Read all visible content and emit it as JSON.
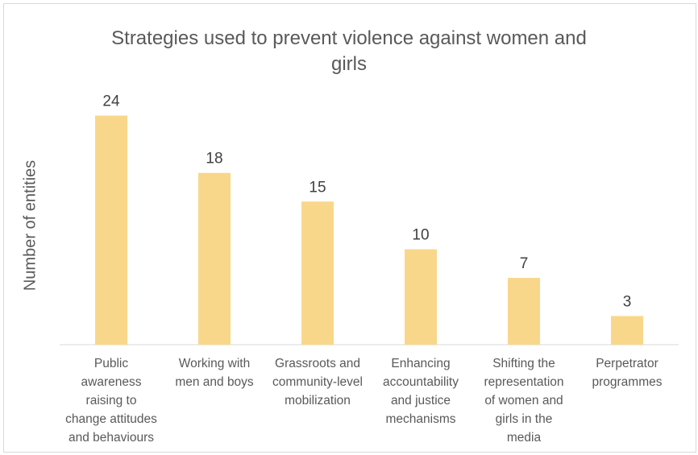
{
  "chart_data": {
    "type": "bar",
    "title_lines": [
      "Strategies used to prevent violence against women and",
      "girls"
    ],
    "ylabel": "Number of entities",
    "xlabel": "",
    "ylim": [
      0,
      26
    ],
    "grid": false,
    "legend": "none",
    "bar_color": "#f9d78a",
    "categories": [
      [
        "Public",
        "awareness",
        "raising to",
        "change attitudes",
        "and behaviours"
      ],
      [
        "Working with",
        "men and boys"
      ],
      [
        "Grassroots and",
        "community-level",
        "mobilization"
      ],
      [
        "Enhancing",
        "accountability",
        "and justice",
        "mechanisms"
      ],
      [
        "Shifting the",
        "representation",
        "of women and",
        "girls in the",
        "media"
      ],
      [
        "Perpetrator",
        "programmes"
      ]
    ],
    "values": [
      24,
      18,
      15,
      10,
      7,
      3
    ]
  }
}
